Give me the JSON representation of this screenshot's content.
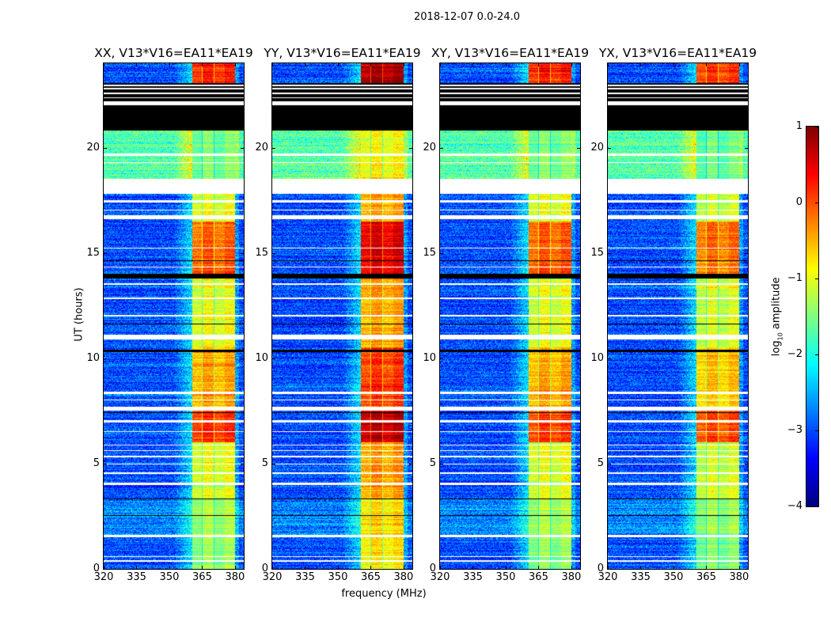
{
  "suptitle": "2018-12-07 0.0-24.0",
  "chart_data": {
    "type": "heatmap",
    "title": "2018-12-07 0.0-24.0",
    "xlabel": "frequency (MHz)",
    "ylabel": "UT (hours)",
    "xlim": [
      320,
      384
    ],
    "ylim": [
      0,
      24
    ],
    "xticks": [
      320,
      335,
      350,
      365,
      380
    ],
    "yticks": [
      0,
      5,
      10,
      15,
      20
    ],
    "colorbar": {
      "label_main": "log",
      "label_sub": "10",
      "label_rest": " amplitude",
      "range": [
        -4,
        1
      ],
      "ticks": [
        1,
        0,
        -1,
        -2,
        -3,
        -4
      ],
      "colormap": "jet"
    },
    "panels": [
      {
        "title": "XX, V13*V16=EA11*EA19",
        "band_offset": 0.0
      },
      {
        "title": "YY, V13*V16=EA11*EA19",
        "band_offset": 0.6
      },
      {
        "title": "XY, V13*V16=EA11*EA19",
        "band_offset": 0.0
      },
      {
        "title": "YX, V13*V16=EA11*EA19",
        "band_offset": -0.1
      }
    ],
    "subbands_mhz": [
      [
        360.5,
        365.0
      ],
      [
        365.3,
        370.2
      ],
      [
        370.5,
        375.2
      ],
      [
        375.5,
        380.0
      ]
    ],
    "segments": [
      {
        "ut": [
          0,
          1.5
        ],
        "band": -1.4,
        "bg": -3.0
      },
      {
        "ut": [
          1.6,
          3.3
        ],
        "band": -1.3,
        "bg": -2.7
      },
      {
        "ut": [
          3.3,
          6.0
        ],
        "band": -1.0,
        "bg": -3.0
      },
      {
        "ut": [
          6.0,
          7.5
        ],
        "band": 0.1,
        "bg": -3.0
      },
      {
        "ut": [
          7.7,
          10.5
        ],
        "band": -0.5,
        "bg": -3.0
      },
      {
        "ut": [
          10.5,
          14.0
        ],
        "band": -1.0,
        "bg": -3.0
      },
      {
        "ut": [
          14.0,
          16.5
        ],
        "band": -0.1,
        "bg": -3.0
      },
      {
        "ut": [
          16.5,
          17.8
        ],
        "band": -1.0,
        "bg": -3.0
      },
      {
        "ut": [
          18.5,
          20.8
        ],
        "band": -1.5,
        "bg": -1.7
      },
      {
        "ut": [
          23.0,
          24.0
        ],
        "band": 0.2,
        "bg": -3.0
      }
    ],
    "flagged_ut": [
      [
        1.5,
        1.62
      ],
      [
        0.35,
        0.42
      ],
      [
        0.55,
        0.6
      ],
      [
        4.0,
        4.08
      ],
      [
        4.5,
        4.6
      ],
      [
        4.95,
        5.0
      ],
      [
        5.3,
        5.38
      ],
      [
        5.6,
        5.65
      ],
      [
        5.85,
        5.9
      ],
      [
        6.5,
        6.55
      ],
      [
        6.95,
        7.05
      ],
      [
        7.5,
        7.7
      ],
      [
        8.3,
        8.4
      ],
      [
        8.0,
        8.05
      ],
      [
        10.9,
        11.1
      ],
      [
        12.0,
        12.05
      ],
      [
        12.8,
        12.9
      ],
      [
        13.5,
        13.55
      ],
      [
        14.3,
        14.35
      ],
      [
        15.2,
        15.25
      ],
      [
        16.6,
        16.8
      ],
      [
        17.0,
        17.05
      ],
      [
        17.4,
        17.5
      ],
      [
        17.8,
        18.5
      ],
      [
        19.25,
        19.3
      ],
      [
        19.6,
        19.7
      ],
      [
        22.0,
        22.2
      ],
      [
        22.35,
        22.4
      ],
      [
        22.55,
        22.6
      ]
    ],
    "zero_ut": [
      [
        2.5,
        2.55
      ],
      [
        3.3,
        3.35
      ],
      [
        7.4,
        7.45
      ],
      [
        10.3,
        10.4
      ],
      [
        11.6,
        11.65
      ],
      [
        13.8,
        14.0
      ],
      [
        14.6,
        14.65
      ],
      [
        20.8,
        22.0
      ],
      [
        22.2,
        22.35
      ],
      [
        22.4,
        22.55
      ],
      [
        22.6,
        22.75
      ],
      [
        22.85,
        22.9
      ],
      [
        23.0,
        23.05
      ]
    ]
  }
}
